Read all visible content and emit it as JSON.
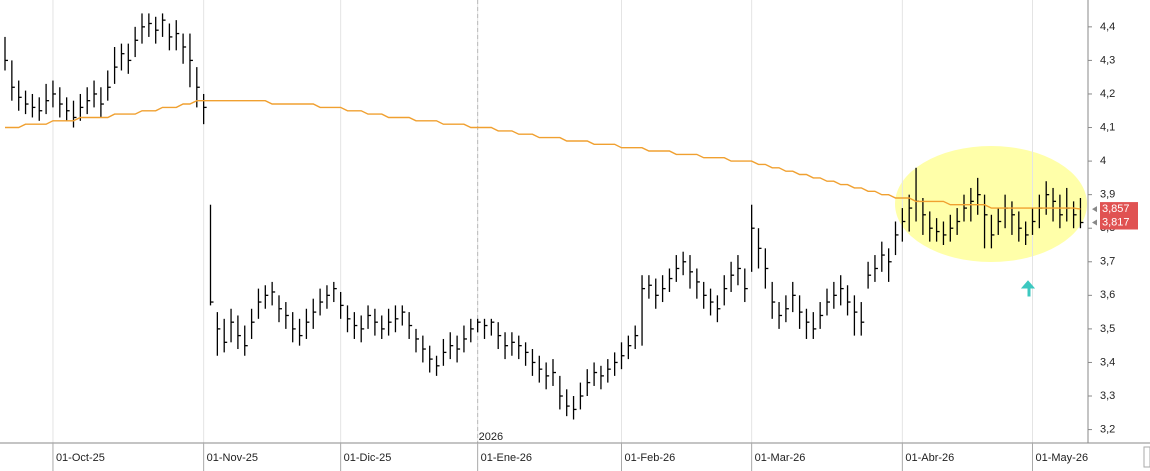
{
  "chart_data": {
    "type": "ohlc",
    "color": "#000000",
    "ylim": [
      3.16,
      4.48
    ],
    "yticks": [
      {
        "value": 3.2,
        "label": "3,2"
      },
      {
        "value": 3.3,
        "label": "3,3"
      },
      {
        "value": 3.4,
        "label": "3,4"
      },
      {
        "value": 3.5,
        "label": "3,5"
      },
      {
        "value": 3.6,
        "label": "3,6"
      },
      {
        "value": 3.7,
        "label": "3,7"
      },
      {
        "value": 3.8,
        "label": "3,8"
      },
      {
        "value": 3.9,
        "label": "3,9"
      },
      {
        "value": 4,
        "label": "4"
      },
      {
        "value": 4.1,
        "label": "4,1"
      },
      {
        "value": 4.2,
        "label": "4,2"
      },
      {
        "value": 4.3,
        "label": "4,3"
      },
      {
        "value": 4.4,
        "label": "4,4"
      }
    ],
    "categories": [
      null,
      null,
      null,
      null,
      null,
      null,
      null,
      "01-Oct-25",
      null,
      null,
      null,
      null,
      null,
      null,
      null,
      null,
      null,
      null,
      null,
      null,
      null,
      null,
      null,
      null,
      null,
      null,
      null,
      null,
      null,
      "01-Nov-25",
      null,
      null,
      null,
      null,
      null,
      null,
      null,
      null,
      null,
      null,
      null,
      null,
      null,
      null,
      null,
      null,
      null,
      null,
      null,
      "01-Dic-25",
      null,
      null,
      null,
      null,
      null,
      null,
      null,
      null,
      null,
      null,
      null,
      null,
      null,
      null,
      null,
      null,
      null,
      null,
      null,
      "01-Ene-26",
      null,
      null,
      null,
      null,
      null,
      null,
      null,
      null,
      null,
      null,
      null,
      null,
      null,
      null,
      null,
      null,
      null,
      null,
      null,
      null,
      "01-Feb-26",
      null,
      null,
      null,
      null,
      null,
      null,
      null,
      null,
      null,
      null,
      null,
      null,
      null,
      null,
      null,
      null,
      null,
      null,
      "01-Mar-26",
      null,
      null,
      null,
      null,
      null,
      null,
      null,
      null,
      null,
      null,
      null,
      null,
      null,
      null,
      null,
      null,
      null,
      null,
      null,
      null,
      null,
      "01-Abr-26",
      null,
      null,
      null,
      null,
      null,
      null,
      null,
      null,
      null,
      null,
      null,
      null,
      null,
      null,
      null,
      null,
      null,
      null,
      "01-May-26",
      null,
      null,
      null,
      null,
      null,
      null,
      null
    ],
    "high": [
      4.37,
      4.3,
      4.24,
      4.21,
      4.2,
      4.19,
      4.23,
      4.24,
      4.22,
      4.19,
      4.18,
      4.2,
      4.22,
      4.24,
      4.22,
      4.27,
      4.34,
      4.35,
      4.35,
      4.4,
      4.44,
      4.44,
      4.43,
      4.44,
      4.41,
      4.42,
      4.38,
      4.38,
      4.28,
      4.2,
      3.87,
      3.55,
      3.53,
      3.56,
      3.54,
      3.51,
      3.56,
      3.62,
      3.63,
      3.64,
      3.6,
      3.58,
      3.55,
      3.53,
      3.56,
      3.59,
      3.62,
      3.63,
      3.64,
      3.61,
      3.57,
      3.55,
      3.54,
      3.57,
      3.56,
      3.54,
      3.56,
      3.57,
      3.57,
      3.55,
      3.5,
      3.48,
      3.45,
      3.42,
      3.47,
      3.49,
      3.48,
      3.51,
      3.53,
      3.53,
      3.53,
      3.53,
      3.52,
      3.49,
      3.49,
      3.48,
      3.46,
      3.44,
      3.42,
      3.4,
      3.41,
      3.36,
      3.32,
      3.3,
      3.34,
      3.38,
      3.4,
      3.39,
      3.41,
      3.43,
      3.46,
      3.48,
      3.51,
      3.66,
      3.66,
      3.65,
      3.66,
      3.68,
      3.72,
      3.73,
      3.72,
      3.68,
      3.64,
      3.62,
      3.6,
      3.66,
      3.7,
      3.72,
      3.68,
      3.87,
      3.8,
      3.74,
      3.64,
      3.58,
      3.6,
      3.64,
      3.6,
      3.56,
      3.55,
      3.58,
      3.62,
      3.64,
      3.66,
      3.63,
      3.6,
      3.58,
      3.7,
      3.72,
      3.76,
      3.74,
      3.82,
      3.86,
      3.9,
      3.98,
      3.89,
      3.85,
      3.83,
      3.82,
      3.84,
      3.86,
      3.9,
      3.92,
      3.95,
      3.9,
      3.84,
      3.86,
      3.9,
      3.88,
      3.85,
      3.82,
      3.86,
      3.9,
      3.94,
      3.92,
      3.9,
      3.92,
      3.88,
      3.89
    ],
    "low": [
      4.27,
      4.18,
      4.15,
      4.14,
      4.13,
      4.12,
      4.14,
      4.16,
      4.13,
      4.12,
      4.1,
      4.12,
      4.14,
      4.16,
      4.13,
      4.18,
      4.23,
      4.27,
      4.26,
      4.31,
      4.35,
      4.37,
      4.35,
      4.37,
      4.33,
      4.33,
      4.29,
      4.22,
      4.16,
      4.11,
      3.57,
      3.42,
      3.43,
      3.46,
      3.44,
      3.42,
      3.47,
      3.53,
      3.56,
      3.57,
      3.52,
      3.5,
      3.46,
      3.45,
      3.47,
      3.5,
      3.54,
      3.56,
      3.58,
      3.53,
      3.49,
      3.47,
      3.46,
      3.5,
      3.48,
      3.47,
      3.48,
      3.49,
      3.51,
      3.47,
      3.43,
      3.4,
      3.37,
      3.36,
      3.39,
      3.41,
      3.4,
      3.43,
      3.46,
      3.49,
      3.47,
      3.48,
      3.44,
      3.41,
      3.42,
      3.41,
      3.39,
      3.36,
      3.34,
      3.32,
      3.33,
      3.26,
      3.24,
      3.23,
      3.26,
      3.3,
      3.33,
      3.32,
      3.34,
      3.36,
      3.38,
      3.41,
      3.44,
      3.45,
      3.59,
      3.56,
      3.58,
      3.61,
      3.64,
      3.66,
      3.62,
      3.59,
      3.56,
      3.54,
      3.52,
      3.57,
      3.61,
      3.63,
      3.58,
      3.67,
      3.68,
      3.62,
      3.53,
      3.5,
      3.52,
      3.55,
      3.5,
      3.47,
      3.47,
      3.5,
      3.54,
      3.56,
      3.57,
      3.54,
      3.48,
      3.48,
      3.62,
      3.64,
      3.67,
      3.64,
      3.72,
      3.76,
      3.79,
      3.82,
      3.78,
      3.76,
      3.76,
      3.75,
      3.76,
      3.78,
      3.82,
      3.82,
      3.84,
      3.74,
      3.74,
      3.78,
      3.8,
      3.78,
      3.76,
      3.75,
      3.78,
      3.8,
      3.84,
      3.82,
      3.8,
      3.82,
      3.8,
      3.8
    ],
    "close": [
      4.3,
      4.22,
      4.19,
      4.17,
      4.16,
      4.15,
      4.18,
      4.2,
      4.17,
      4.15,
      4.13,
      4.16,
      4.18,
      4.2,
      4.17,
      4.22,
      4.28,
      4.32,
      4.3,
      4.36,
      4.4,
      4.41,
      4.39,
      4.42,
      4.37,
      4.38,
      4.34,
      4.3,
      4.22,
      4.16,
      3.58,
      3.5,
      3.46,
      3.52,
      3.48,
      3.45,
      3.52,
      3.58,
      3.6,
      3.61,
      3.56,
      3.54,
      3.5,
      3.48,
      3.52,
      3.55,
      3.58,
      3.6,
      3.62,
      3.57,
      3.53,
      3.51,
      3.5,
      3.54,
      3.52,
      3.5,
      3.52,
      3.53,
      3.55,
      3.51,
      3.47,
      3.44,
      3.41,
      3.39,
      3.43,
      3.45,
      3.44,
      3.47,
      3.5,
      3.52,
      3.51,
      3.52,
      3.48,
      3.45,
      3.46,
      3.45,
      3.43,
      3.4,
      3.38,
      3.36,
      3.37,
      3.3,
      3.27,
      3.26,
      3.3,
      3.34,
      3.37,
      3.36,
      3.38,
      3.4,
      3.42,
      3.45,
      3.48,
      3.62,
      3.63,
      3.6,
      3.62,
      3.65,
      3.68,
      3.7,
      3.67,
      3.64,
      3.6,
      3.58,
      3.56,
      3.62,
      3.66,
      3.68,
      3.62,
      3.8,
      3.74,
      3.68,
      3.58,
      3.54,
      3.56,
      3.6,
      3.55,
      3.52,
      3.5,
      3.54,
      3.58,
      3.6,
      3.62,
      3.58,
      3.55,
      3.52,
      3.66,
      3.68,
      3.72,
      3.7,
      3.78,
      3.82,
      3.86,
      3.88,
      3.84,
      3.8,
      3.79,
      3.78,
      3.8,
      3.82,
      3.86,
      3.88,
      3.9,
      3.84,
      3.78,
      3.82,
      3.86,
      3.84,
      3.8,
      3.78,
      3.82,
      3.86,
      3.9,
      3.88,
      3.84,
      3.86,
      3.84,
      3.817
    ],
    "close_label": "3,817",
    "tag_color": "#e05252",
    "overlays": [
      {
        "type": "line",
        "color": "#f0a030",
        "last_label": "3,857",
        "values": [
          4.1,
          4.1,
          4.1,
          4.11,
          4.11,
          4.11,
          4.11,
          4.12,
          4.12,
          4.12,
          4.12,
          4.13,
          4.13,
          4.13,
          4.13,
          4.13,
          4.14,
          4.14,
          4.14,
          4.14,
          4.15,
          4.15,
          4.15,
          4.16,
          4.16,
          4.16,
          4.17,
          4.17,
          4.18,
          4.18,
          4.18,
          4.18,
          4.18,
          4.18,
          4.18,
          4.18,
          4.18,
          4.18,
          4.18,
          4.17,
          4.17,
          4.17,
          4.17,
          4.17,
          4.17,
          4.17,
          4.16,
          4.16,
          4.16,
          4.16,
          4.15,
          4.15,
          4.15,
          4.14,
          4.14,
          4.14,
          4.13,
          4.13,
          4.13,
          4.13,
          4.12,
          4.12,
          4.12,
          4.12,
          4.11,
          4.11,
          4.11,
          4.11,
          4.1,
          4.1,
          4.1,
          4.1,
          4.09,
          4.09,
          4.09,
          4.08,
          4.08,
          4.08,
          4.07,
          4.07,
          4.07,
          4.07,
          4.06,
          4.06,
          4.06,
          4.06,
          4.05,
          4.05,
          4.05,
          4.05,
          4.04,
          4.04,
          4.04,
          4.04,
          4.03,
          4.03,
          4.03,
          4.03,
          4.02,
          4.02,
          4.02,
          4.02,
          4.01,
          4.01,
          4.01,
          4.01,
          4.0,
          4.0,
          4.0,
          4.0,
          3.99,
          3.99,
          3.98,
          3.98,
          3.97,
          3.97,
          3.96,
          3.96,
          3.95,
          3.95,
          3.94,
          3.94,
          3.93,
          3.93,
          3.92,
          3.92,
          3.91,
          3.91,
          3.9,
          3.9,
          3.89,
          3.89,
          3.89,
          3.88,
          3.88,
          3.88,
          3.88,
          3.88,
          3.87,
          3.87,
          3.87,
          3.87,
          3.87,
          3.87,
          3.86,
          3.86,
          3.86,
          3.86,
          3.86,
          3.86,
          3.86,
          3.86,
          3.86,
          3.86,
          3.86,
          3.86,
          3.86,
          3.857
        ]
      }
    ],
    "annotations": [
      {
        "text": "2026",
        "at": 69
      }
    ]
  }
}
